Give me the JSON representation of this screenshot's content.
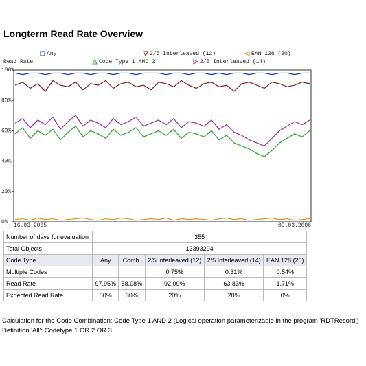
{
  "header": {
    "title": "Longterm Read Rate Overview"
  },
  "chart_data": {
    "type": "line",
    "y_label": "Read Rate",
    "categories": [
      "16.03.2005",
      null,
      null,
      null,
      null,
      null,
      null,
      null,
      null,
      null,
      null,
      null,
      null,
      null,
      null,
      null,
      null,
      null,
      null,
      null,
      null,
      null,
      null,
      null,
      null,
      null,
      null,
      null,
      null,
      null,
      null,
      null,
      null,
      null,
      null,
      null,
      null,
      null,
      null,
      "09.03.2006"
    ],
    "ylim": [
      0,
      100
    ],
    "yticks": [
      {
        "value": 0,
        "label": "0%"
      },
      {
        "value": 20,
        "label": "20%"
      },
      {
        "value": 40,
        "label": "40%"
      },
      {
        "value": 60,
        "label": "60%"
      },
      {
        "value": 80,
        "label": "80%"
      },
      {
        "value": 100,
        "label": "100%"
      }
    ],
    "series": [
      {
        "name": "Any",
        "color": "#1030d0",
        "values": [
          98,
          97,
          98,
          98,
          97,
          98,
          98,
          97,
          98,
          98,
          97,
          98,
          98,
          97,
          98,
          98,
          97,
          98,
          98,
          98,
          97,
          98,
          98,
          97,
          98,
          98,
          97,
          98,
          97,
          98,
          98,
          97,
          98,
          98,
          97,
          98,
          98,
          97,
          98,
          98
        ]
      },
      {
        "name": "2/5 Interleaved (12)",
        "color": "#8b1a1a",
        "values": [
          90,
          92,
          88,
          91,
          86,
          93,
          90,
          89,
          92,
          87,
          91,
          90,
          93,
          88,
          91,
          92,
          89,
          90,
          87,
          92,
          91,
          89,
          93,
          90,
          88,
          91,
          92,
          89,
          90,
          86,
          91,
          92,
          90,
          88,
          92,
          91,
          89,
          90,
          92,
          91
        ]
      },
      {
        "name": "EAN 128 (20)",
        "color": "#e08a20",
        "values": [
          1.5,
          2,
          1,
          2.5,
          1.5,
          2,
          1,
          1.5,
          2,
          2.5,
          1.5,
          1,
          2,
          1.5,
          2.5,
          2,
          1,
          1.5,
          2,
          1.5,
          2.5,
          1,
          2,
          1.5,
          2,
          1.5,
          1,
          2,
          2.5,
          1.5,
          2,
          1,
          1.5,
          2,
          2.5,
          1.5,
          2,
          1,
          1.5,
          2
        ]
      },
      {
        "name": "Code Type 1 AND 2",
        "color": "#2aa02a",
        "values": [
          58,
          62,
          55,
          60,
          57,
          61,
          54,
          59,
          63,
          56,
          60,
          58,
          55,
          61,
          57,
          59,
          62,
          56,
          58,
          60,
          57,
          61,
          55,
          59,
          58,
          56,
          60,
          54,
          57,
          52,
          50,
          48,
          45,
          43,
          47,
          52,
          55,
          58,
          56,
          60
        ]
      },
      {
        "name": "2/5 Interleaved (14)",
        "color": "#9b2aa8",
        "values": [
          65,
          68,
          62,
          67,
          64,
          69,
          61,
          66,
          70,
          63,
          67,
          65,
          62,
          68,
          64,
          66,
          69,
          63,
          65,
          67,
          64,
          68,
          62,
          66,
          65,
          63,
          67,
          61,
          64,
          59,
          57,
          54,
          52,
          50,
          55,
          60,
          63,
          66,
          64,
          67
        ]
      }
    ]
  },
  "table": {
    "rows": [
      [
        "Number of days for evaluation",
        "355"
      ],
      [
        "Total Objects",
        "13393294"
      ],
      [
        "Code Type",
        "Any",
        "Comb.",
        "2/5 Interleaved (12)",
        "2/5 Interleaved (14)",
        "EAN 128 (20)"
      ],
      [
        "Multiple Codes",
        null,
        null,
        "0.75%",
        "0.31%",
        "0.54%"
      ],
      [
        "Read Rate",
        "97.95%",
        "58.08%",
        "92.09%",
        "63.83%",
        "1.71%"
      ],
      [
        "Expected Read Rate",
        "50%",
        "30%",
        "20%",
        "20%",
        "0%"
      ]
    ]
  },
  "notes": [
    "Calculation for the Code Combination: Code Type 1 AND 2 (Logical operation parameterizable in the program 'RDTRecord')",
    "Definition 'All': Codetype 1 OR 2 OR 3"
  ]
}
